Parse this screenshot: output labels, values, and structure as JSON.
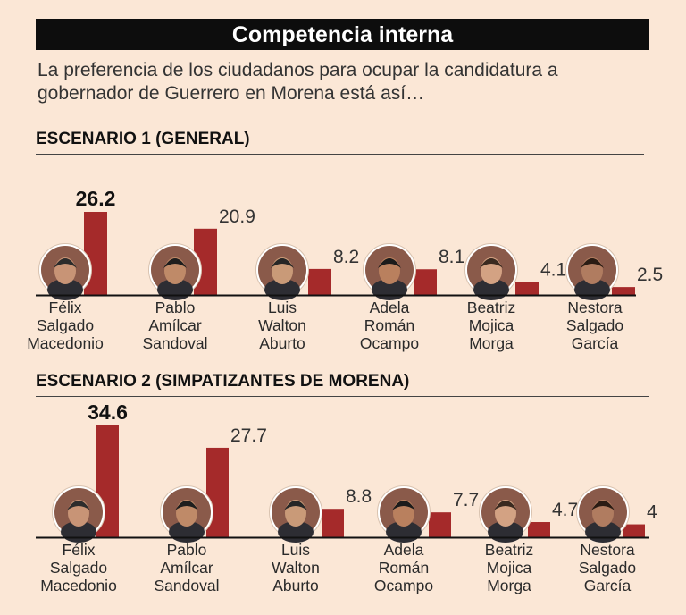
{
  "header": {
    "title": "Competencia interna"
  },
  "intro": "La preferencia de los ciudadanos para ocupar la candidatura a gobernador de Guerrero en Morena está así…",
  "colors": {
    "bar": "#a52a2a",
    "banner": "#0d0d0d",
    "background": "#fbe7d6"
  },
  "chart_data": [
    {
      "type": "bar",
      "title": "ESCENARIO 1 (GENERAL)",
      "categories": [
        [
          "Félix",
          "Salgado",
          "Macedonio"
        ],
        [
          "Pablo",
          "Amílcar",
          "Sandoval"
        ],
        [
          "Luis",
          "Walton",
          "Aburto"
        ],
        [
          "Adela",
          "Román",
          "Ocampo"
        ],
        [
          "Beatriz",
          "Mojica",
          "Morga"
        ],
        [
          "Nestora",
          "Salgado",
          "García"
        ]
      ],
      "values": [
        26.2,
        20.9,
        8.2,
        8.1,
        4.1,
        2.5
      ],
      "value_labels": [
        "26.2",
        "20.9",
        "8.2",
        "8.1",
        "4.1",
        "2.5"
      ],
      "photos": [
        "felix-salgado-photo",
        "pablo-amilcar-photo",
        "luis-walton-photo",
        "adela-roman-photo",
        "beatriz-mojica-photo",
        "nestora-salgado-photo"
      ],
      "ylim": [
        0,
        30
      ]
    },
    {
      "type": "bar",
      "title": "ESCENARIO 2 (SIMPATIZANTES DE MORENA)",
      "categories": [
        [
          "Félix",
          "Salgado",
          "Macedonio"
        ],
        [
          "Pablo",
          "Amílcar",
          "Sandoval"
        ],
        [
          "Luis",
          "Walton",
          "Aburto"
        ],
        [
          "Adela",
          "Román",
          "Ocampo"
        ],
        [
          "Beatriz",
          "Mojica",
          "Morga"
        ],
        [
          "Nestora",
          "Salgado",
          "García"
        ]
      ],
      "values": [
        34.6,
        27.7,
        8.8,
        7.7,
        4.7,
        4
      ],
      "value_labels": [
        "34.6",
        "27.7",
        "8.8",
        "7.7",
        "4.7",
        "4"
      ],
      "photos": [
        "felix-salgado-photo",
        "pablo-amilcar-photo",
        "luis-walton-photo",
        "adela-roman-photo",
        "beatriz-mojica-photo",
        "nestora-salgado-photo"
      ],
      "ylim": [
        0,
        40
      ]
    }
  ]
}
